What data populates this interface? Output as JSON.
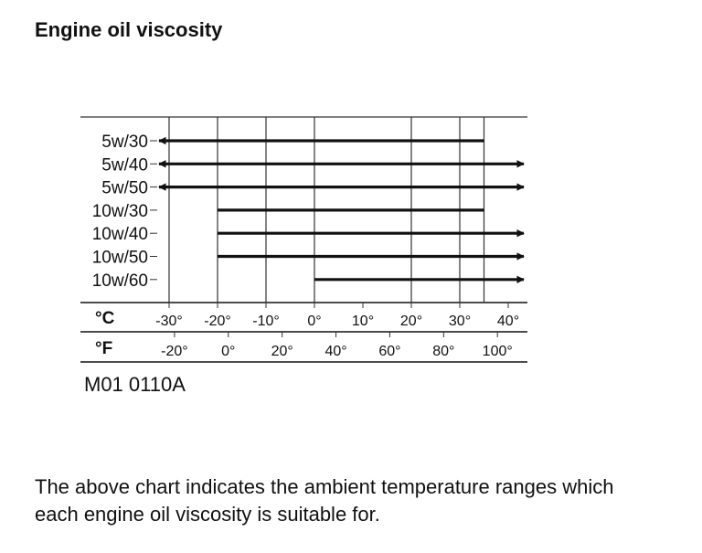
{
  "page": {
    "heading": "Engine oil viscosity",
    "reference_code": "M01 0110A",
    "caption": "The above chart indicates the ambient temperature ranges which each engine oil viscosity is suitable for."
  },
  "chart_data": {
    "type": "range-bar",
    "title": "Engine oil viscosity",
    "categories": [
      "5w/30",
      "5w/40",
      "5w/50",
      "10w/30",
      "10w/40",
      "10w/50",
      "10w/60"
    ],
    "ranges_celsius": [
      {
        "name": "5w/30",
        "min": null,
        "max": 35
      },
      {
        "name": "5w/40",
        "min": null,
        "max": null
      },
      {
        "name": "5w/50",
        "min": null,
        "max": null
      },
      {
        "name": "10w/30",
        "min": -20,
        "max": 35
      },
      {
        "name": "10w/40",
        "min": -20,
        "max": null
      },
      {
        "name": "10w/50",
        "min": -20,
        "max": null
      },
      {
        "name": "10w/60",
        "min": 0,
        "max": null
      }
    ],
    "gridlines_celsius": [
      -30,
      -20,
      -10,
      0,
      20,
      30,
      35
    ],
    "celsius_axis": {
      "label": "°C",
      "ticks": [
        {
          "value": -30,
          "label": "-30°"
        },
        {
          "value": -20,
          "label": "-20°"
        },
        {
          "value": -10,
          "label": "-10°"
        },
        {
          "value": 0,
          "label": "0°"
        },
        {
          "value": 10,
          "label": "10°"
        },
        {
          "value": 20,
          "label": "20°"
        },
        {
          "value": 30,
          "label": "30°"
        },
        {
          "value": 40,
          "label": "40°"
        }
      ]
    },
    "fahrenheit_axis": {
      "label": "°F",
      "ticks": [
        {
          "value": -20,
          "label": "-20°"
        },
        {
          "value": 0,
          "label": "0°"
        },
        {
          "value": 20,
          "label": "20°"
        },
        {
          "value": 40,
          "label": "40°"
        },
        {
          "value": 60,
          "label": "60°"
        },
        {
          "value": 80,
          "label": "80°"
        },
        {
          "value": 100,
          "label": "100°"
        }
      ]
    }
  }
}
